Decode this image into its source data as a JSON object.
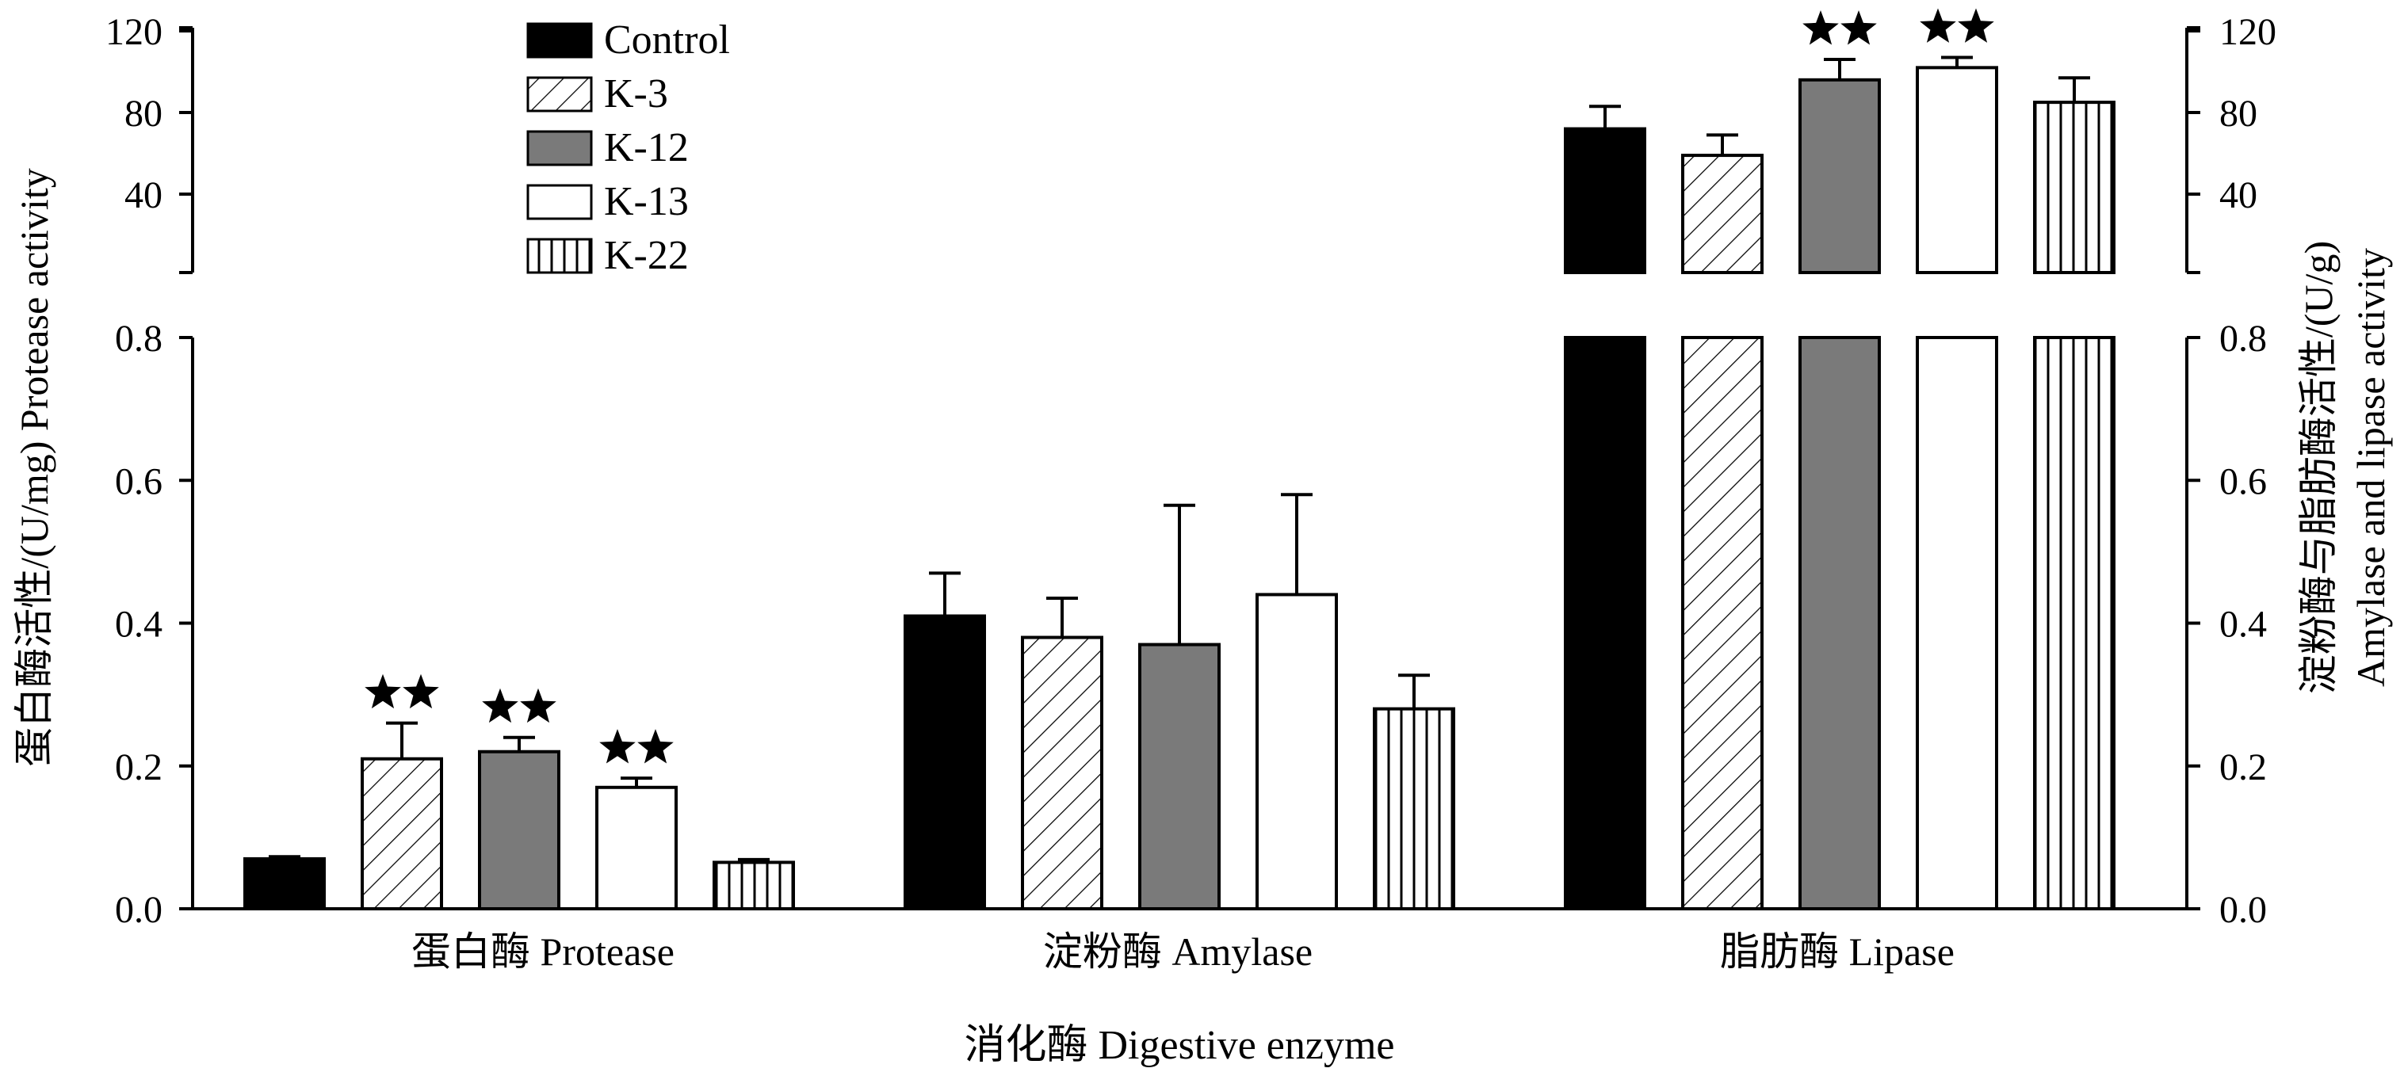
{
  "chart_data": {
    "type": "bar",
    "categories": [
      "蛋白酶  Protease",
      "淀粉酶 Amylase",
      "脂肪酶  Lipase"
    ],
    "series": [
      {
        "name": "Control",
        "values": [
          0.07,
          0.41,
          72
        ],
        "errors": [
          0.003,
          0.06,
          11
        ],
        "significance": [
          "",
          "",
          ""
        ]
      },
      {
        "name": "K-3",
        "values": [
          0.21,
          0.38,
          59
        ],
        "errors": [
          0.05,
          0.055,
          10
        ],
        "significance": [
          "★★",
          "",
          ""
        ]
      },
      {
        "name": "K-12",
        "values": [
          0.22,
          0.37,
          96
        ],
        "errors": [
          0.02,
          0.195,
          10
        ],
        "significance": [
          "★★",
          "",
          "★★"
        ]
      },
      {
        "name": "K-13",
        "values": [
          0.17,
          0.44,
          102
        ],
        "errors": [
          0.013,
          0.14,
          5
        ],
        "significance": [
          "★★",
          "",
          "★★"
        ]
      },
      {
        "name": "K-22",
        "values": [
          0.065,
          0.28,
          85
        ],
        "errors": [
          0.004,
          0.047,
          12
        ],
        "significance": [
          "",
          "",
          ""
        ]
      }
    ],
    "fills": [
      "#000000",
      "hatch-diagonal",
      "#7a7a7a",
      "#ffffff",
      "hatch-vertical"
    ],
    "lower_axis": {
      "range": [
        0.0,
        0.8
      ],
      "ticks": [
        "0.0",
        "0.2",
        "0.4",
        "0.6",
        "0.8"
      ]
    },
    "upper_axis": {
      "range": [
        0,
        120
      ],
      "ticks": [
        "40",
        "80",
        "120"
      ],
      "broken": true
    },
    "ylabel_left": "蛋白酶活性/(U/mg)  Protease activity",
    "ylabel_right_cn": "淀粉酶与脂肪酶活性/(U/g)",
    "ylabel_right_en": "Amylase and lipase activity",
    "xlabel": "消化酶  Digestive enzyme",
    "legend_position": "top-center"
  }
}
